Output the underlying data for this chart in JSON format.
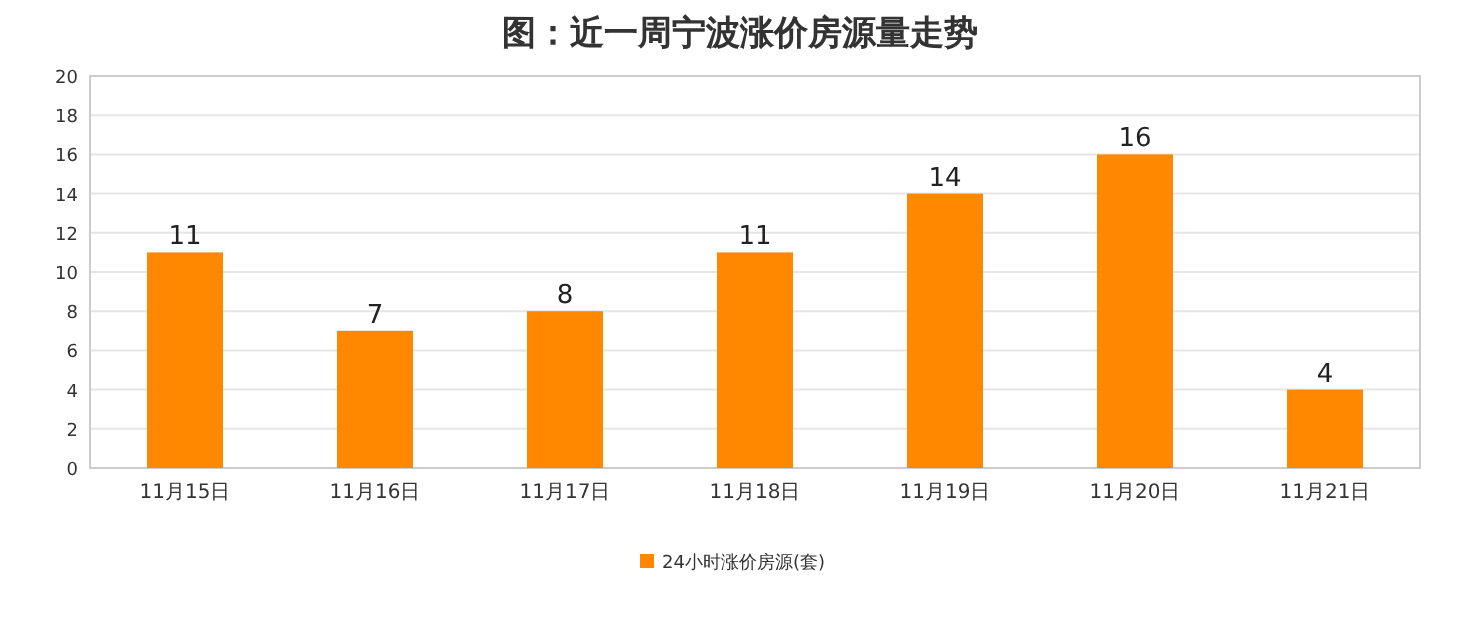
{
  "chart_data": {
    "type": "bar",
    "title": "图：近一周宁波涨价房源量走势",
    "categories": [
      "11月15日",
      "11月16日",
      "11月17日",
      "11月18日",
      "11月19日",
      "11月20日",
      "11月21日"
    ],
    "series": [
      {
        "name": "24小时涨价房源(套)",
        "color": "#ff8800",
        "values": [
          11,
          7,
          8,
          11,
          14,
          16,
          4
        ]
      }
    ],
    "ylim": [
      0,
      20
    ],
    "yticks": [
      0,
      2,
      4,
      6,
      8,
      10,
      12,
      14,
      16,
      18,
      20
    ],
    "grid": "y",
    "legend": "bottom",
    "data_labels": true
  }
}
